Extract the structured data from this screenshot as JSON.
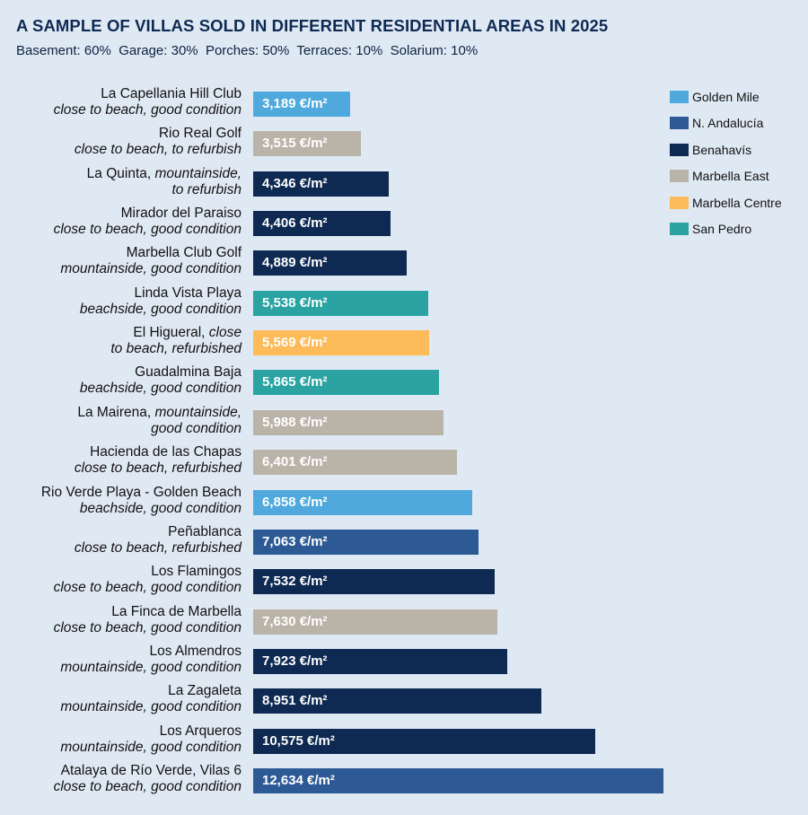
{
  "chart_data": {
    "type": "bar",
    "orientation": "horizontal",
    "title": "A SAMPLE OF VILLAS SOLD IN DIFFERENT RESIDENTIAL AREAS IN 2025",
    "subtitle": "Basement: 60%  Garage: 30%  Porches: 50%  Terraces: 10%  Solarium: 10%",
    "unit": "€/m²",
    "legend_position": "top-right",
    "grid": false,
    "regions": [
      {
        "name": "Golden Mile",
        "color": "#4fa9dc"
      },
      {
        "name": "N. Andalucía",
        "color": "#2d5a94"
      },
      {
        "name": "Benahavís",
        "color": "#0e2a52"
      },
      {
        "name": "Marbella East",
        "color": "#bab3a8"
      },
      {
        "name": "Marbella Centre",
        "color": "#fdbb5a"
      },
      {
        "name": "San Pedro",
        "color": "#2aa3a2"
      }
    ],
    "bars": [
      {
        "name": "La Capellania Hill Club",
        "name_italic": "",
        "desc": "close to beach, good condition",
        "value": 3189,
        "label": "3,189 €/m²",
        "region": "Golden Mile"
      },
      {
        "name": "Rio Real Golf",
        "name_italic": "",
        "desc": "close to beach, to refurbish",
        "value": 3515,
        "label": "3,515 €/m²",
        "region": "Marbella East"
      },
      {
        "name": "La Quinta,",
        "name_italic": " mountainside,",
        "desc": "to refurbish",
        "value": 4346,
        "label": "4,346 €/m²",
        "region": "Benahavís"
      },
      {
        "name": "Mirador del Paraiso",
        "name_italic": "",
        "desc": "close to beach, good condition",
        "value": 4406,
        "label": "4,406 €/m²",
        "region": "Benahavís"
      },
      {
        "name": "Marbella Club Golf",
        "name_italic": "",
        "desc": "mountainside, good condition",
        "value": 4889,
        "label": "4,889 €/m²",
        "region": "Benahavís"
      },
      {
        "name": "Linda Vista Playa",
        "name_italic": "",
        "desc": "beachside, good condition",
        "value": 5538,
        "label": "5,538 €/m²",
        "region": "San Pedro"
      },
      {
        "name": "El Higueral,",
        "name_italic": " close",
        "desc": "to beach, refurbished",
        "value": 5569,
        "label": "5,569 €/m²",
        "region": "Marbella Centre"
      },
      {
        "name": "Guadalmina Baja",
        "name_italic": "",
        "desc": "beachside, good condition",
        "value": 5865,
        "label": "5,865 €/m²",
        "region": "San Pedro"
      },
      {
        "name": "La Mairena,",
        "name_italic": " mountainside,",
        "desc": "good condition",
        "value": 5988,
        "label": "5,988 €/m²",
        "region": "Marbella East"
      },
      {
        "name": "Hacienda de las Chapas",
        "name_italic": "",
        "desc": "close to beach, refurbished",
        "value": 6401,
        "label": "6,401 €/m²",
        "region": "Marbella East"
      },
      {
        "name": "Rio Verde Playa - Golden Beach",
        "name_italic": "",
        "desc": "beachside, good condition",
        "value": 6858,
        "label": "6,858 €/m²",
        "region": "Golden Mile"
      },
      {
        "name": "Peñablanca",
        "name_italic": "",
        "desc": "close to beach, refurbished",
        "value": 7063,
        "label": "7,063 €/m²",
        "region": "N. Andalucía"
      },
      {
        "name": "Los Flamingos",
        "name_italic": "",
        "desc": "close to beach, good condition",
        "value": 7532,
        "label": "7,532 €/m²",
        "region": "Benahavís"
      },
      {
        "name": "La Finca de Marbella",
        "name_italic": "",
        "desc": "close to beach, good condition",
        "value": 7630,
        "label": "7,630 €/m²",
        "region": "Marbella East"
      },
      {
        "name": "Los Almendros",
        "name_italic": "",
        "desc": "mountainside, good condition",
        "value": 7923,
        "label": "7,923 €/m²",
        "region": "Benahavís"
      },
      {
        "name": "La Zagaleta",
        "name_italic": "",
        "desc": "mountainside, good condition",
        "value": 8951,
        "label": "8,951 €/m²",
        "region": "Benahavís"
      },
      {
        "name": "Los Arqueros",
        "name_italic": "",
        "desc": "mountainside, good condition",
        "value": 10575,
        "label": "10,575 €/m²",
        "region": "Benahavís"
      },
      {
        "name": "Atalaya de Río Verde, Vilas 6",
        "name_italic": "",
        "desc": "close to beach, good condition",
        "value": 12634,
        "label": "12,634 €/m²",
        "region": "N. Andalucía"
      }
    ]
  }
}
